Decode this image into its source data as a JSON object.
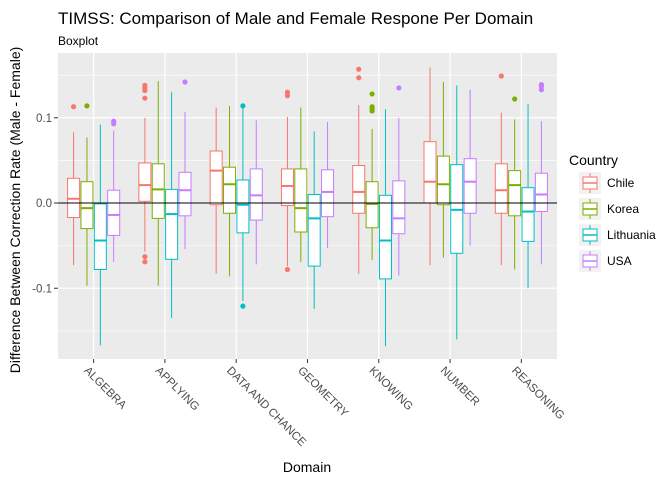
{
  "chart_data": {
    "type": "boxplot",
    "title": "TIMSS: Comparison of Male and Female Respone Per Domain",
    "subtitle": "Boxplot",
    "xlabel": "Domain",
    "ylabel": "Difference Between Correction Rate (Male - Female)",
    "ylim": [
      -0.183,
      0.176
    ],
    "yticks": [
      -0.1,
      0.0,
      0.1
    ],
    "ytick_labels": [
      "-0.1",
      "0.0",
      "0.1"
    ],
    "reference_line_y": 0.0,
    "grid": true,
    "categories": [
      "ALGEBRA",
      "APPLYING",
      "DATA AND CHANCE",
      "GEOMETRY",
      "KNOWING",
      "NUMBER",
      "REASONING"
    ],
    "legend": {
      "title": "Country",
      "placement": "right"
    },
    "series": [
      {
        "name": "Chile",
        "color": "#F8766D",
        "boxes": [
          {
            "min": -0.073,
            "q1": -0.017,
            "median": 0.005,
            "q3": 0.029,
            "max": 0.083,
            "outliers": [
              0.113
            ]
          },
          {
            "min": -0.057,
            "q1": 0.002,
            "median": 0.021,
            "q3": 0.047,
            "max": 0.1,
            "outliers": [
              -0.063,
              -0.069,
              0.123,
              0.132,
              0.135,
              0.138
            ]
          },
          {
            "min": -0.083,
            "q1": -0.002,
            "median": 0.038,
            "q3": 0.061,
            "max": 0.112,
            "outliers": []
          },
          {
            "min": -0.074,
            "q1": -0.003,
            "median": 0.02,
            "q3": 0.04,
            "max": 0.101,
            "outliers": [
              -0.078,
              0.126,
              0.13
            ]
          },
          {
            "min": -0.083,
            "q1": -0.012,
            "median": 0.013,
            "q3": 0.044,
            "max": 0.115,
            "outliers": [
              0.147,
              0.157
            ]
          },
          {
            "min": -0.073,
            "q1": 0.0,
            "median": 0.025,
            "q3": 0.072,
            "max": 0.159,
            "outliers": []
          },
          {
            "min": -0.073,
            "q1": -0.012,
            "median": 0.015,
            "q3": 0.046,
            "max": 0.106,
            "outliers": [
              0.149
            ]
          }
        ]
      },
      {
        "name": "Korea",
        "color": "#7CAE00",
        "boxes": [
          {
            "min": -0.097,
            "q1": -0.03,
            "median": -0.006,
            "q3": 0.025,
            "max": 0.077,
            "outliers": [
              0.114
            ]
          },
          {
            "min": -0.097,
            "q1": -0.018,
            "median": 0.016,
            "q3": 0.046,
            "max": 0.143,
            "outliers": []
          },
          {
            "min": -0.086,
            "q1": -0.012,
            "median": 0.022,
            "q3": 0.042,
            "max": 0.114,
            "outliers": []
          },
          {
            "min": -0.069,
            "q1": -0.034,
            "median": -0.006,
            "q3": 0.04,
            "max": 0.112,
            "outliers": []
          },
          {
            "min": -0.067,
            "q1": -0.029,
            "median": -0.001,
            "q3": 0.025,
            "max": 0.087,
            "outliers": [
              0.108,
              0.111,
              0.113,
              0.128
            ]
          },
          {
            "min": -0.064,
            "q1": -0.002,
            "median": 0.022,
            "q3": 0.055,
            "max": 0.142,
            "outliers": []
          },
          {
            "min": -0.078,
            "q1": -0.015,
            "median": 0.021,
            "q3": 0.038,
            "max": 0.098,
            "outliers": [
              0.122
            ]
          }
        ]
      },
      {
        "name": "Lithuania",
        "color": "#00BFC4",
        "boxes": [
          {
            "min": -0.167,
            "q1": -0.078,
            "median": -0.044,
            "q3": -0.001,
            "max": 0.092,
            "outliers": []
          },
          {
            "min": -0.135,
            "q1": -0.066,
            "median": -0.013,
            "q3": 0.016,
            "max": 0.13,
            "outliers": []
          },
          {
            "min": -0.115,
            "q1": -0.035,
            "median": -0.002,
            "q3": 0.027,
            "max": 0.113,
            "outliers": [
              -0.121,
              0.114
            ]
          },
          {
            "min": -0.124,
            "q1": -0.074,
            "median": -0.018,
            "q3": 0.01,
            "max": 0.084,
            "outliers": []
          },
          {
            "min": -0.168,
            "q1": -0.089,
            "median": -0.044,
            "q3": 0.009,
            "max": 0.11,
            "outliers": []
          },
          {
            "min": -0.16,
            "q1": -0.059,
            "median": -0.008,
            "q3": 0.045,
            "max": 0.138,
            "outliers": []
          },
          {
            "min": -0.1,
            "q1": -0.045,
            "median": -0.01,
            "q3": 0.018,
            "max": 0.116,
            "outliers": []
          }
        ]
      },
      {
        "name": "USA",
        "color": "#C77CFF",
        "boxes": [
          {
            "min": -0.069,
            "q1": -0.038,
            "median": -0.014,
            "q3": 0.015,
            "max": 0.085,
            "outliers": [
              0.093,
              0.096
            ]
          },
          {
            "min": -0.054,
            "q1": -0.015,
            "median": 0.015,
            "q3": 0.036,
            "max": 0.107,
            "outliers": [
              0.142
            ]
          },
          {
            "min": -0.072,
            "q1": -0.02,
            "median": 0.009,
            "q3": 0.04,
            "max": 0.097,
            "outliers": []
          },
          {
            "min": -0.053,
            "q1": -0.016,
            "median": 0.013,
            "q3": 0.039,
            "max": 0.095,
            "outliers": []
          },
          {
            "min": -0.085,
            "q1": -0.036,
            "median": -0.018,
            "q3": 0.026,
            "max": 0.1,
            "outliers": [
              0.135
            ]
          },
          {
            "min": -0.05,
            "q1": -0.012,
            "median": 0.025,
            "q3": 0.052,
            "max": 0.133,
            "outliers": []
          },
          {
            "min": -0.072,
            "q1": -0.01,
            "median": 0.01,
            "q3": 0.035,
            "max": 0.096,
            "outliers": [
              0.133,
              0.137,
              0.139
            ]
          }
        ]
      }
    ]
  }
}
